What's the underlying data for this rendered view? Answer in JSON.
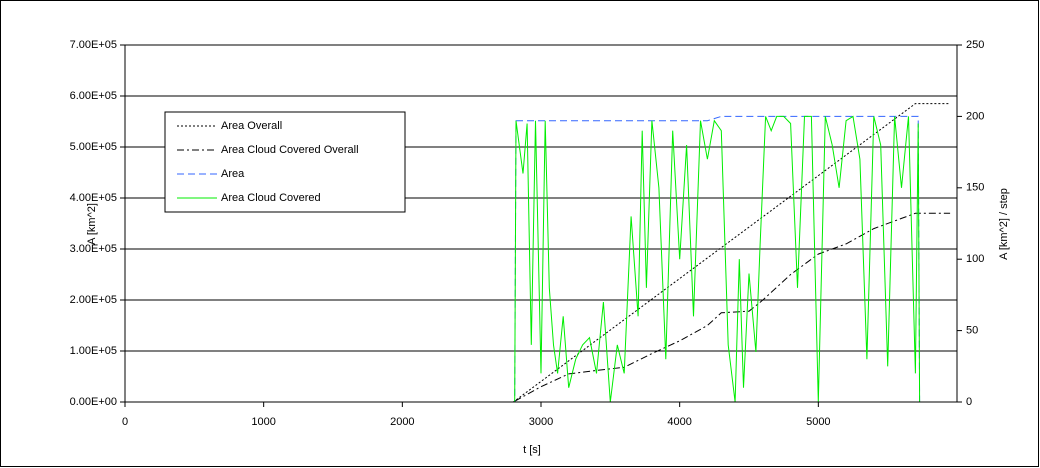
{
  "chart_data": {
    "type": "line",
    "x_label": "t [s]",
    "y_label": "A [km^2]",
    "y2_label": "A [km^2] / step",
    "xlim": [
      0,
      6000
    ],
    "xticks": [
      0,
      1000,
      2000,
      3000,
      4000,
      5000
    ],
    "ylim": [
      0,
      700000
    ],
    "yticks": [
      {
        "value": 0,
        "label": "0.00E+00"
      },
      {
        "value": 100000,
        "label": "1.00E+05"
      },
      {
        "value": 200000,
        "label": "2.00E+05"
      },
      {
        "value": 300000,
        "label": "3.00E+05"
      },
      {
        "value": 400000,
        "label": "4.00E+05"
      },
      {
        "value": 500000,
        "label": "5.00E+05"
      },
      {
        "value": 600000,
        "label": "6.00E+05"
      },
      {
        "value": 700000,
        "label": "7.00E+05"
      }
    ],
    "y2lim": [
      0,
      250
    ],
    "y2ticks": [
      0,
      50,
      100,
      150,
      200,
      250
    ],
    "grid": true,
    "legend": "upper-left",
    "series": [
      {
        "name": "Area Overall",
        "color": "#000000",
        "dash": "dot",
        "axis": "y",
        "x": [
          0,
          2800,
          5700,
          5950
        ],
        "values": [
          0,
          0,
          585000,
          585000
        ]
      },
      {
        "name": "Area Cloud Covered Overall",
        "color": "#000000",
        "dash": "dashdot",
        "axis": "y",
        "x": [
          0,
          2800,
          3000,
          3200,
          3400,
          3600,
          3800,
          4000,
          4200,
          4300,
          4500,
          4600,
          4800,
          5000,
          5200,
          5400,
          5600,
          5700,
          5950
        ],
        "values": [
          0,
          0,
          30000,
          55000,
          62000,
          68000,
          95000,
          120000,
          150000,
          175000,
          178000,
          200000,
          250000,
          290000,
          310000,
          340000,
          360000,
          370000,
          370000
        ]
      },
      {
        "name": "Area",
        "color": "#3366ff",
        "dash": "dash",
        "axis": "y2",
        "x": [
          0,
          2810,
          2820,
          4200,
          4300,
          5720,
          5730,
          5950
        ],
        "values": [
          0,
          0,
          197,
          197,
          200,
          200,
          0,
          0
        ]
      },
      {
        "name": "Area Cloud Covered",
        "color": "#00ee00",
        "dash": "solid",
        "axis": "y2",
        "x": [
          0,
          2810,
          2820,
          2870,
          2900,
          2930,
          2960,
          3000,
          3030,
          3060,
          3090,
          3120,
          3160,
          3200,
          3250,
          3300,
          3350,
          3400,
          3450,
          3500,
          3550,
          3600,
          3650,
          3700,
          3730,
          3760,
          3800,
          3850,
          3900,
          3950,
          4000,
          4050,
          4100,
          4150,
          4200,
          4250,
          4300,
          4350,
          4400,
          4430,
          4460,
          4500,
          4550,
          4580,
          4620,
          4660,
          4700,
          4750,
          4800,
          4850,
          4900,
          4950,
          5000,
          5050,
          5100,
          5150,
          5200,
          5250,
          5300,
          5350,
          5400,
          5450,
          5500,
          5550,
          5600,
          5650,
          5700,
          5720,
          5730,
          5950
        ],
        "values": [
          0,
          0,
          197,
          160,
          195,
          40,
          197,
          20,
          197,
          80,
          40,
          20,
          60,
          10,
          30,
          40,
          45,
          20,
          70,
          0,
          40,
          20,
          130,
          60,
          190,
          80,
          197,
          150,
          30,
          190,
          100,
          180,
          60,
          197,
          170,
          197,
          190,
          40,
          0,
          100,
          10,
          90,
          35,
          110,
          200,
          190,
          200,
          200,
          195,
          80,
          200,
          200,
          0,
          200,
          180,
          150,
          197,
          200,
          170,
          30,
          200,
          180,
          25,
          200,
          150,
          200,
          20,
          195,
          0,
          0
        ]
      }
    ]
  }
}
